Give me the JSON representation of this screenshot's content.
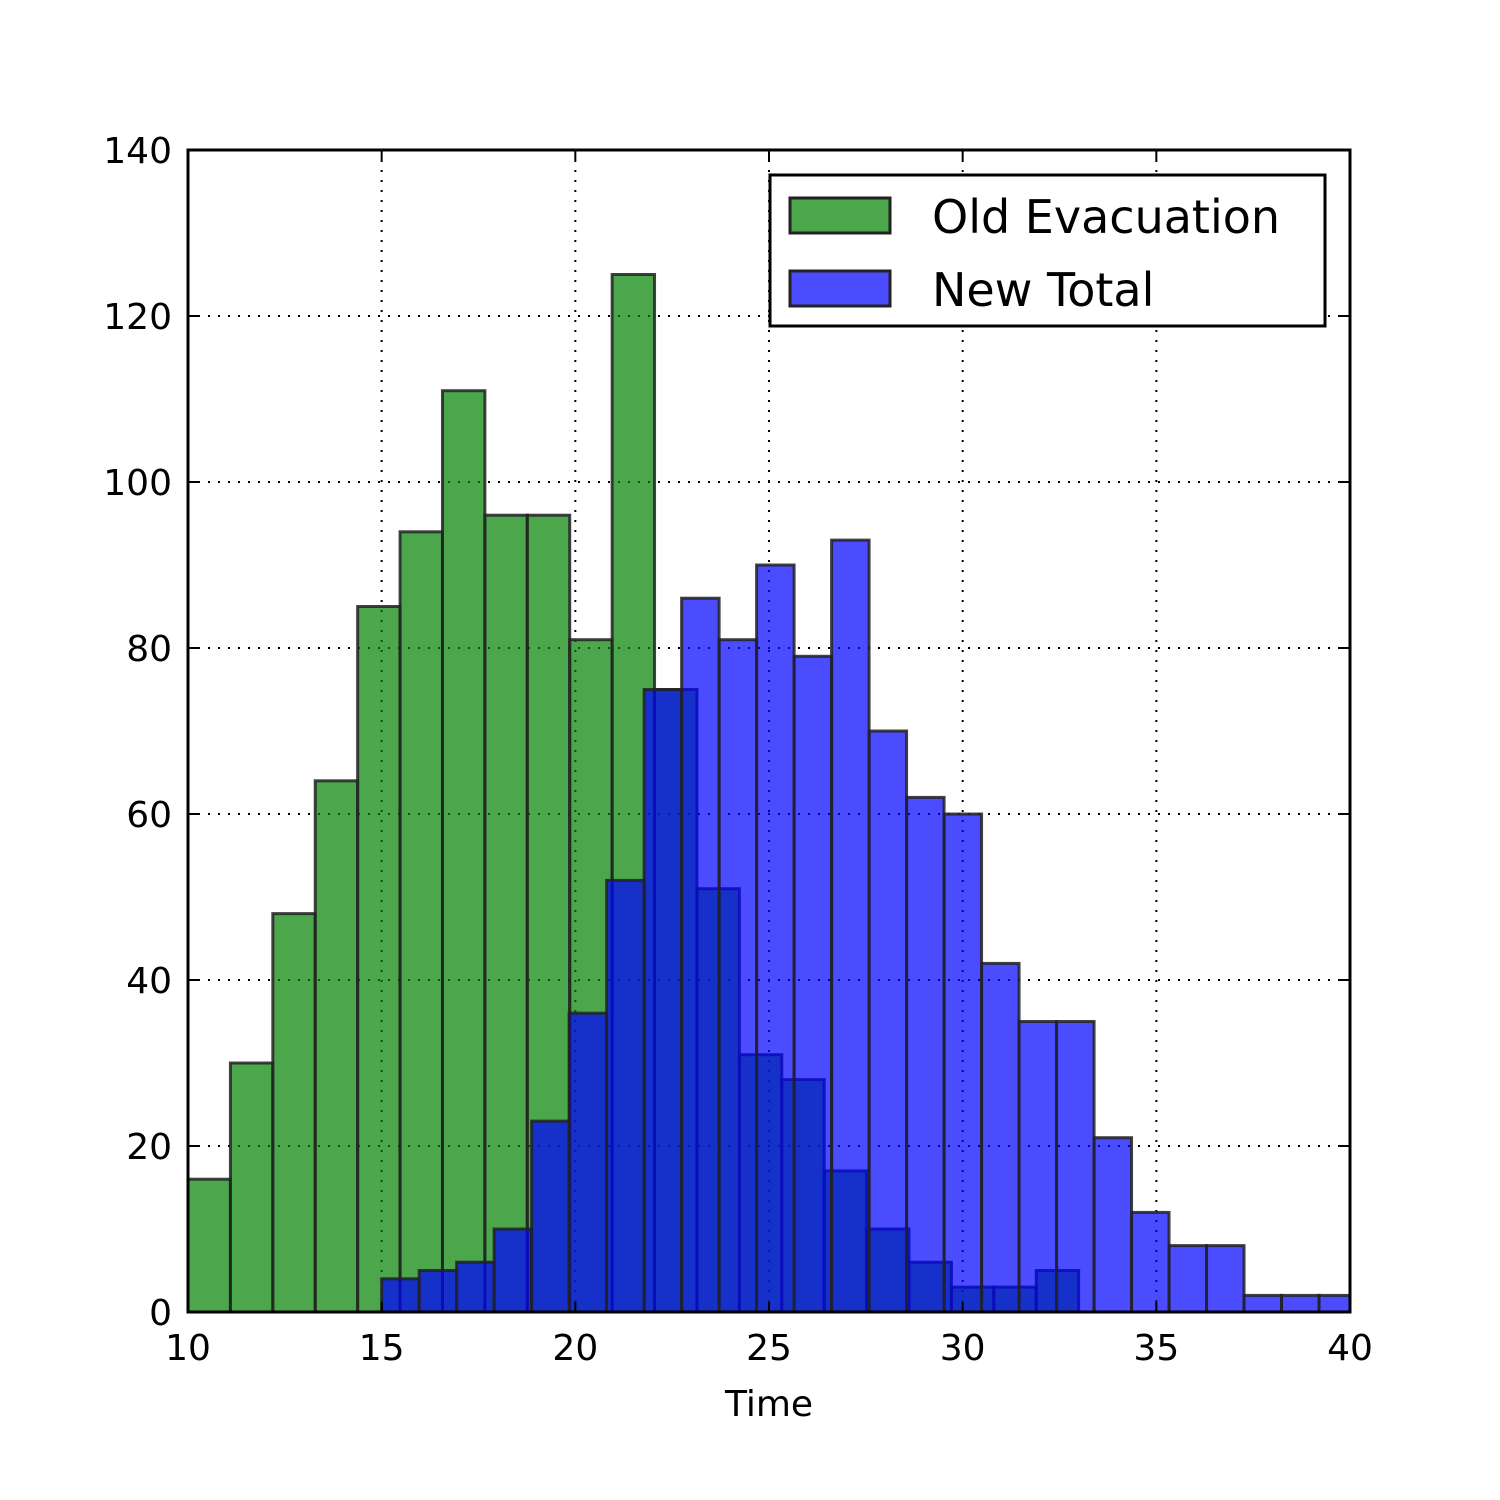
{
  "chart_data": {
    "type": "bar",
    "subtype": "overlapping-histogram",
    "title": "",
    "xlabel": "Time",
    "ylabel": "",
    "xlim": [
      10,
      40
    ],
    "ylim": [
      0,
      140
    ],
    "xticks": [
      10,
      15,
      20,
      25,
      30,
      35,
      40
    ],
    "yticks": [
      0,
      20,
      40,
      60,
      80,
      100,
      120,
      140
    ],
    "grid": true,
    "legend_position": "top-right",
    "series": [
      {
        "name": "Old Evacuation",
        "color": "#008000",
        "opacity": 0.7,
        "bin_start": 10.0,
        "bin_width": 1.095,
        "values": [
          16,
          30,
          48,
          64,
          85,
          94,
          111,
          96,
          96,
          81,
          125,
          75,
          51,
          31,
          28,
          17,
          10,
          6,
          3,
          3,
          5
        ]
      },
      {
        "name": "New Total",
        "color": "#0000ff",
        "opacity": 0.7,
        "bin_start": 15.0,
        "bin_width": 0.968,
        "values": [
          4,
          5,
          6,
          10,
          23,
          36,
          52,
          75,
          86,
          81,
          90,
          79,
          93,
          70,
          62,
          60,
          42,
          35,
          35,
          21,
          12,
          8,
          8,
          2,
          2,
          2
        ]
      }
    ]
  }
}
